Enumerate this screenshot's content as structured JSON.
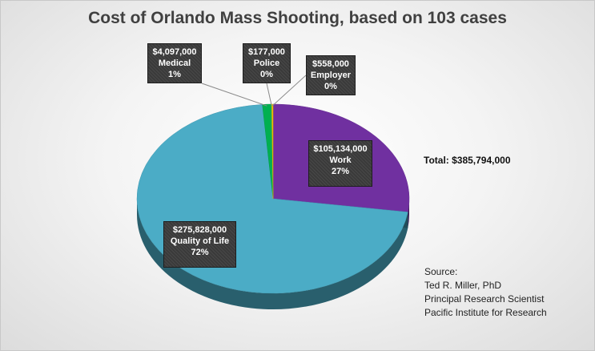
{
  "chart_data": {
    "type": "pie",
    "title": "Cost of Orlando Mass Shooting, based on 103 cases",
    "slices": [
      {
        "label": "Work",
        "amount": "$105,134,000",
        "percent_label": "27%",
        "value": 105134000,
        "color": "#7030A0"
      },
      {
        "label": "Quality of Life",
        "amount": "$275,828,000",
        "percent_label": "72%",
        "value": 275828000,
        "color": "#4BACC6"
      },
      {
        "label": "Medical",
        "amount": "$4,097,000",
        "percent_label": "1%",
        "value": 4097000,
        "color": "#00B050"
      },
      {
        "label": "Police",
        "amount": "$177,000",
        "percent_label": "0%",
        "value": 177000,
        "color": "#9BBB59"
      },
      {
        "label": "Employer",
        "amount": "$558,000",
        "percent_label": "0%",
        "value": 558000,
        "color": "#F2C200"
      }
    ],
    "total_text": "Total: $385,794,000",
    "source_lines": [
      "Source:",
      "Ted R. Miller, PhD",
      "Principal Research Scientist",
      "Pacific Institute for Research"
    ]
  }
}
